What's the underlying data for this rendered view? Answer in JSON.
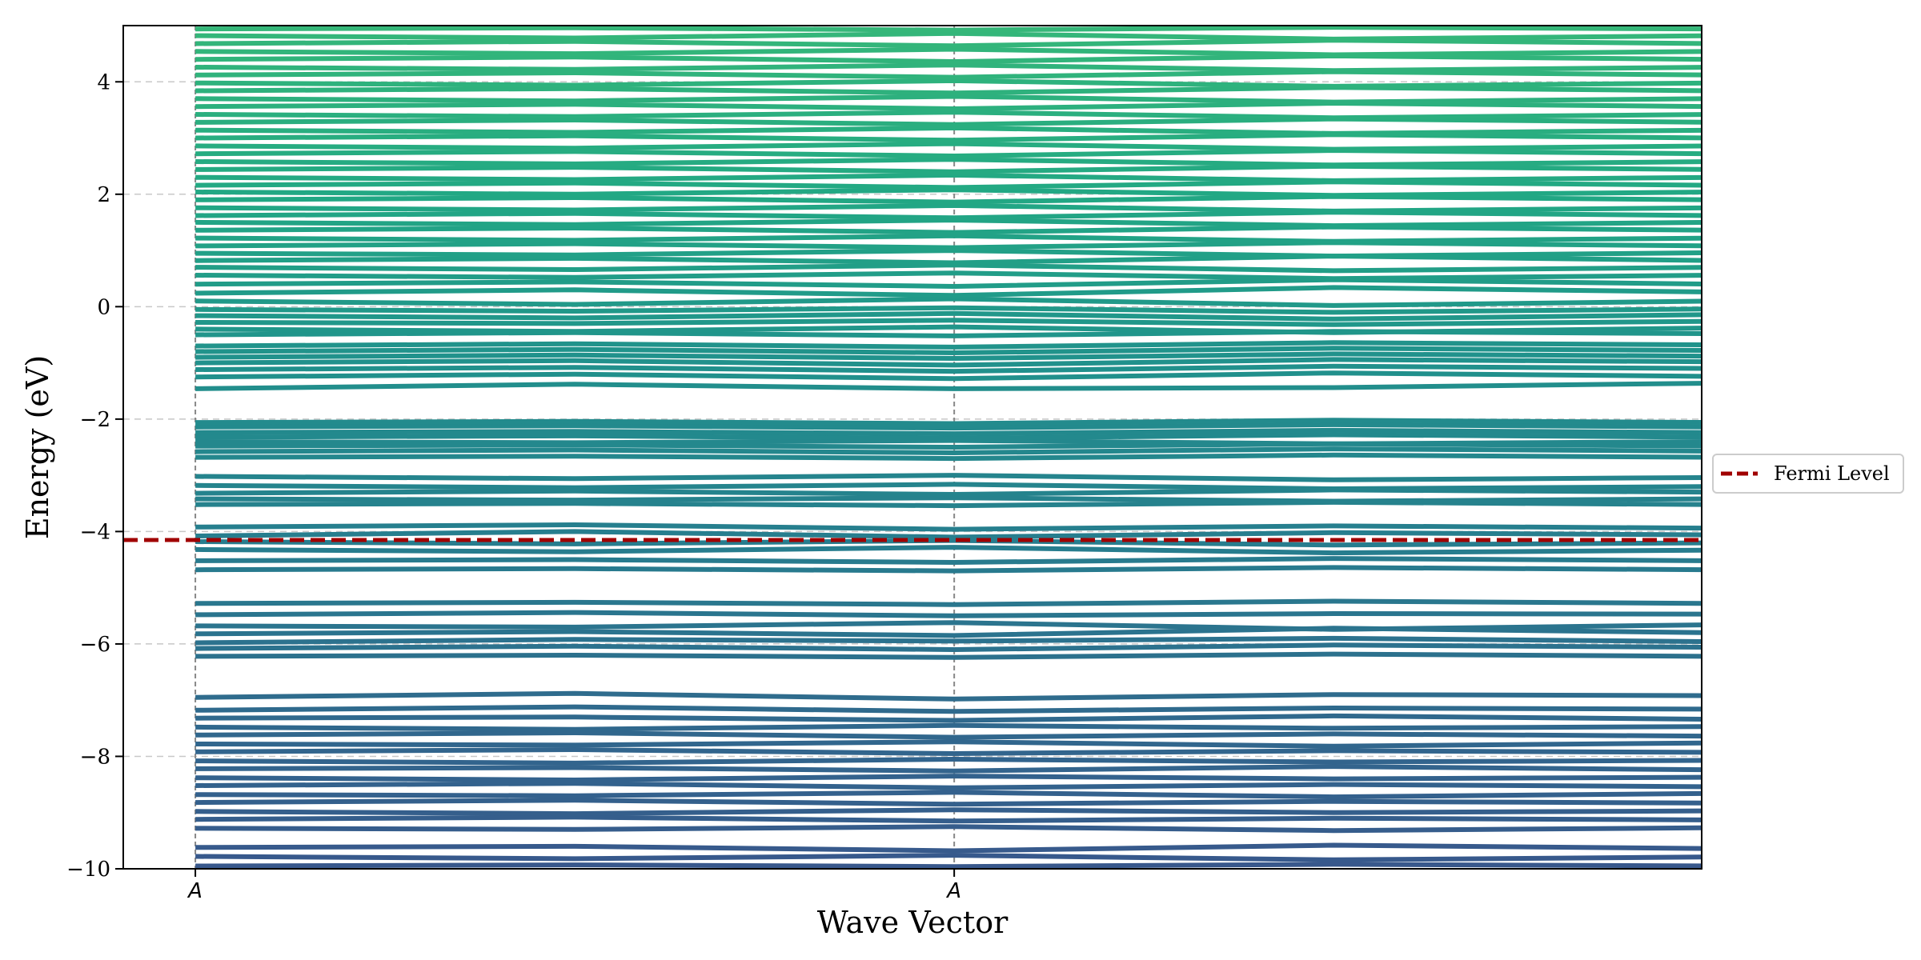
{
  "chart_data": {
    "type": "line",
    "xlabel": "Wave Vector",
    "ylabel": "Energy (eV)",
    "ylim": [
      -10,
      5
    ],
    "yticks": [
      -10,
      -8,
      -6,
      -4,
      -2,
      0,
      2,
      4
    ],
    "ytick_labels": [
      "−10",
      "−8",
      "−6",
      "−4",
      "−2",
      "0",
      "2",
      "4"
    ],
    "grid": "horizontal dashed",
    "kpath": {
      "x": [
        0,
        1,
        2,
        3,
        4
      ],
      "labeled_ticks": [
        {
          "x": 0,
          "label": "A"
        },
        {
          "x": 2,
          "label": "A"
        }
      ],
      "segment_boundaries": [
        1,
        2,
        3
      ]
    },
    "xlim": [
      -0.19,
      3.97
    ],
    "fermi_level": {
      "name": "Fermi Level",
      "energy": -4.15,
      "color": "#a00000",
      "style": "dashed"
    },
    "legend_placement": "outside right",
    "colormap": "viridis",
    "bands": [
      [
        -9.95,
        -9.93,
        -9.96,
        -9.92,
        -9.95
      ],
      [
        -9.78,
        -9.82,
        -9.76,
        -9.84,
        -9.79
      ],
      [
        -9.62,
        -9.6,
        -9.68,
        -9.58,
        -9.64
      ],
      [
        -9.28,
        -9.3,
        -9.25,
        -9.32,
        -9.27
      ],
      [
        -9.12,
        -9.08,
        -9.15,
        -9.1,
        -9.13
      ],
      [
        -8.98,
        -9.02,
        -8.95,
        -9.0,
        -8.97
      ],
      [
        -8.82,
        -8.78,
        -8.85,
        -8.8,
        -8.83
      ],
      [
        -8.68,
        -8.7,
        -8.64,
        -8.72,
        -8.66
      ],
      [
        -8.52,
        -8.48,
        -8.56,
        -8.5,
        -8.54
      ],
      [
        -8.38,
        -8.42,
        -8.35,
        -8.4,
        -8.37
      ],
      [
        -8.22,
        -8.2,
        -8.26,
        -8.18,
        -8.24
      ],
      [
        -8.08,
        -8.12,
        -8.05,
        -8.1,
        -8.07
      ],
      [
        -7.92,
        -7.88,
        -7.95,
        -7.9,
        -7.93
      ],
      [
        -7.78,
        -7.8,
        -7.74,
        -7.82,
        -7.76
      ],
      [
        -7.62,
        -7.58,
        -7.66,
        -7.6,
        -7.64
      ],
      [
        -7.48,
        -7.52,
        -7.45,
        -7.5,
        -7.47
      ],
      [
        -7.32,
        -7.3,
        -7.36,
        -7.28,
        -7.34
      ],
      [
        -7.18,
        -7.12,
        -7.2,
        -7.14,
        -7.16
      ],
      [
        -6.95,
        -6.88,
        -6.98,
        -6.9,
        -6.92
      ],
      [
        -6.22,
        -6.2,
        -6.24,
        -6.18,
        -6.22
      ],
      [
        -6.08,
        -6.04,
        -6.1,
        -6.02,
        -6.06
      ],
      [
        -5.98,
        -5.92,
        -5.95,
        -5.9,
        -5.96
      ],
      [
        -5.82,
        -5.78,
        -5.85,
        -5.72,
        -5.8
      ],
      [
        -5.68,
        -5.7,
        -5.62,
        -5.74,
        -5.66
      ],
      [
        -5.48,
        -5.44,
        -5.5,
        -5.46,
        -5.47
      ],
      [
        -5.28,
        -5.26,
        -5.3,
        -5.24,
        -5.28
      ],
      [
        -4.68,
        -4.66,
        -4.7,
        -4.64,
        -4.68
      ],
      [
        -4.52,
        -4.5,
        -4.55,
        -4.48,
        -4.52
      ],
      [
        -4.32,
        -4.36,
        -4.28,
        -4.38,
        -4.33
      ],
      [
        -4.18,
        -4.22,
        -4.16,
        -4.24,
        -4.2
      ],
      [
        -4.08,
        -4.0,
        -4.1,
        -4.02,
        -4.06
      ],
      [
        -3.92,
        -3.88,
        -3.96,
        -3.9,
        -3.94
      ],
      [
        -3.52,
        -3.5,
        -3.54,
        -3.48,
        -3.52
      ],
      [
        -3.42,
        -3.44,
        -3.4,
        -3.46,
        -3.42
      ],
      [
        -3.32,
        -3.28,
        -3.34,
        -3.26,
        -3.3
      ],
      [
        -3.18,
        -3.22,
        -3.16,
        -3.24,
        -3.2
      ],
      [
        -3.02,
        -3.06,
        -3.0,
        -3.08,
        -3.04
      ],
      [
        -2.68,
        -2.66,
        -2.7,
        -2.64,
        -2.68
      ],
      [
        -2.58,
        -2.55,
        -2.6,
        -2.53,
        -2.57
      ],
      [
        -2.48,
        -2.46,
        -2.5,
        -2.44,
        -2.48
      ],
      [
        -2.4,
        -2.42,
        -2.38,
        -2.44,
        -2.4
      ],
      [
        -2.32,
        -2.3,
        -2.34,
        -2.28,
        -2.32
      ],
      [
        -2.24,
        -2.22,
        -2.26,
        -2.2,
        -2.24
      ],
      [
        -2.14,
        -2.12,
        -2.16,
        -2.1,
        -2.14
      ],
      [
        -2.06,
        -2.04,
        -2.08,
        -2.02,
        -2.06
      ],
      [
        -1.46,
        -1.38,
        -1.46,
        -1.44,
        -1.36
      ],
      [
        -1.25,
        -1.2,
        -1.28,
        -1.18,
        -1.24
      ],
      [
        -1.12,
        -1.08,
        -1.15,
        -1.06,
        -1.1
      ],
      [
        -1.0,
        -0.96,
        -1.04,
        -0.94,
        -0.98
      ],
      [
        -0.9,
        -0.86,
        -0.92,
        -0.84,
        -0.88
      ],
      [
        -0.8,
        -0.76,
        -0.82,
        -0.74,
        -0.78
      ],
      [
        -0.7,
        -0.66,
        -0.72,
        -0.64,
        -0.68
      ],
      [
        -0.5,
        -0.46,
        -0.52,
        -0.44,
        -0.48
      ],
      [
        -0.4,
        -0.44,
        -0.36,
        -0.46,
        -0.38
      ],
      [
        -0.28,
        -0.3,
        -0.24,
        -0.32,
        -0.26
      ],
      [
        -0.16,
        -0.2,
        -0.12,
        -0.22,
        -0.14
      ],
      [
        -0.05,
        -0.08,
        -0.02,
        -0.1,
        -0.04
      ],
      [
        0.1,
        0.04,
        0.14,
        0.02,
        0.1
      ],
      [
        0.24,
        0.3,
        0.2,
        0.34,
        0.26
      ],
      [
        0.4,
        0.44,
        0.36,
        0.48,
        0.4
      ],
      [
        0.56,
        0.52,
        0.6,
        0.5,
        0.56
      ],
      [
        0.7,
        0.66,
        0.74,
        0.64,
        0.7
      ],
      [
        0.82,
        0.86,
        0.78,
        0.9,
        0.82
      ],
      [
        0.95,
        0.92,
        1.0,
        0.9,
        0.96
      ],
      [
        1.08,
        1.12,
        1.05,
        1.14,
        1.08
      ],
      [
        1.22,
        1.18,
        1.26,
        1.16,
        1.22
      ],
      [
        1.36,
        1.4,
        1.32,
        1.42,
        1.36
      ],
      [
        1.5,
        1.46,
        1.54,
        1.44,
        1.5
      ],
      [
        1.62,
        1.66,
        1.58,
        1.68,
        1.62
      ],
      [
        1.76,
        1.72,
        1.8,
        1.7,
        1.76
      ],
      [
        1.9,
        1.94,
        1.86,
        1.96,
        1.9
      ],
      [
        2.04,
        2.0,
        2.08,
        1.98,
        2.04
      ],
      [
        2.16,
        2.2,
        2.12,
        2.22,
        2.16
      ],
      [
        2.3,
        2.26,
        2.34,
        2.24,
        2.3
      ],
      [
        2.44,
        2.48,
        2.4,
        2.5,
        2.44
      ],
      [
        2.58,
        2.54,
        2.62,
        2.52,
        2.58
      ],
      [
        2.72,
        2.76,
        2.68,
        2.78,
        2.72
      ],
      [
        2.86,
        2.82,
        2.9,
        2.8,
        2.86
      ],
      [
        3.0,
        3.04,
        2.96,
        3.06,
        3.0
      ],
      [
        3.14,
        3.1,
        3.18,
        3.08,
        3.14
      ],
      [
        3.28,
        3.32,
        3.24,
        3.34,
        3.28
      ],
      [
        3.42,
        3.38,
        3.46,
        3.36,
        3.42
      ],
      [
        3.56,
        3.6,
        3.52,
        3.62,
        3.56
      ],
      [
        3.7,
        3.66,
        3.74,
        3.64,
        3.7
      ],
      [
        3.84,
        3.88,
        3.8,
        3.9,
        3.84
      ],
      [
        3.98,
        3.94,
        4.02,
        3.92,
        3.98
      ],
      [
        4.12,
        4.16,
        4.08,
        4.18,
        4.12
      ],
      [
        4.26,
        4.22,
        4.3,
        4.2,
        4.26
      ],
      [
        4.4,
        4.44,
        4.36,
        4.46,
        4.4
      ],
      [
        4.54,
        4.5,
        4.58,
        4.48,
        4.54
      ],
      [
        4.68,
        4.72,
        4.64,
        4.74,
        4.68
      ],
      [
        4.82,
        4.78,
        4.86,
        4.76,
        4.82
      ],
      [
        4.94,
        4.96,
        4.92,
        4.97,
        4.94
      ]
    ]
  }
}
